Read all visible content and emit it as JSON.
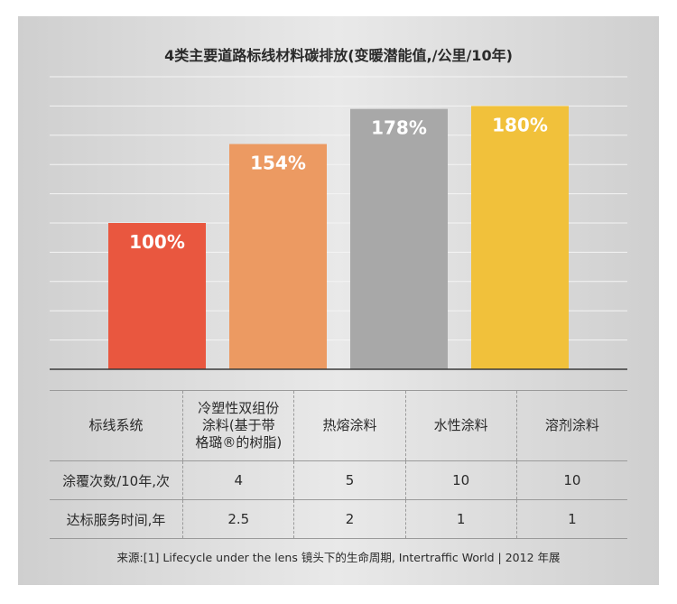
{
  "title": "4类主要道路标线材料碳排放(变暖潜能值,/公里/10年)",
  "chart_data": {
    "type": "bar",
    "categories": [
      "冷塑性双组份涂料(基于带格璐®的树脂)",
      "热熔涂料",
      "水性涂料",
      "溶剂涂料"
    ],
    "values": [
      100,
      154,
      178,
      180
    ],
    "data_labels": [
      "100%",
      "154%",
      "178%",
      "180%"
    ],
    "colors": [
      "#e9573f",
      "#ec9a62",
      "#a8a8a8",
      "#f1c13b"
    ],
    "ylim": [
      0,
      200
    ],
    "grid": true
  },
  "table": {
    "header": [
      "标线系统",
      "冷塑性双组份涂料(基于带格璐®的树脂)",
      "热熔涂料",
      "水性涂料",
      "溶剂涂料"
    ],
    "rows": [
      [
        "涂覆次数/10年,次",
        "4",
        "5",
        "10",
        "10"
      ],
      [
        "达标服务时间,年",
        "2.5",
        "2",
        "1",
        "1"
      ]
    ]
  },
  "source": "来源:[1] Lifecycle under the lens 镜头下的生命周期, Intertraffic World | 2012 年展"
}
